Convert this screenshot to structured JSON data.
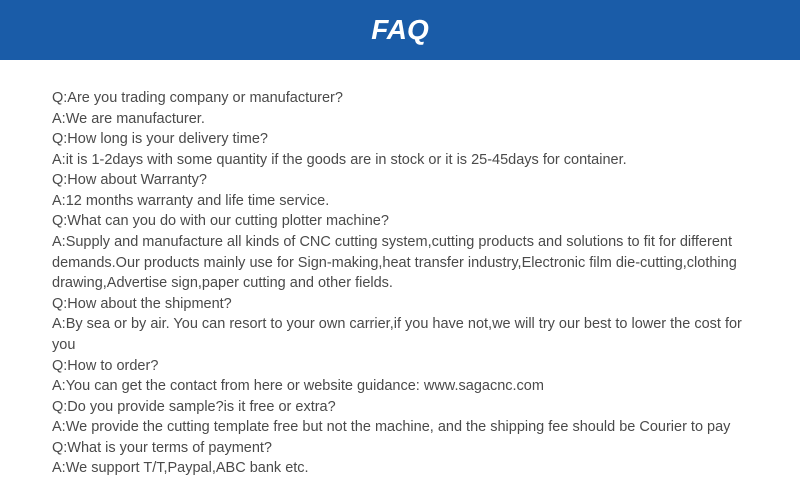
{
  "header": {
    "title": "FAQ"
  },
  "faq": {
    "lines": [
      "Q:Are you trading company or manufacturer?",
      "A:We are manufacturer.",
      "Q:How long is your delivery time?",
      "A:it is 1-2days with some quantity if the goods are in stock or it is 25-45days for container.",
      "Q:How about Warranty?",
      "A:12 months warranty and life time service.",
      "Q:What can you do with our cutting plotter machine?",
      "A:Supply and manufacture all kinds of CNC cutting system,cutting products and solutions to fit for different demands.Our products mainly use for Sign-making,heat transfer industry,Electronic film die-cutting,clothing drawing,Advertise sign,paper cutting and other fields.",
      "Q:How about the shipment?",
      "A:By sea or by air. You can resort to your own carrier,if you have not,we will try our best to lower the cost for you",
      "Q:How to order?",
      "A:You can get the contact from here or website guidance: www.sagacnc.com",
      "Q:Do you provide sample?is it free or extra?",
      "A:We provide the cutting template free but not the machine, and the shipping fee should be Courier to pay",
      "Q:What is your terms of payment?",
      "A:We support T/T,Paypal,ABC bank etc."
    ]
  },
  "styling": {
    "header_bg_color": "#1a5ca8",
    "header_text_color": "#ffffff",
    "body_text_color": "#4a4a4a",
    "background_color": "#ffffff",
    "header_fontsize": 28,
    "body_fontsize": 14.5
  }
}
